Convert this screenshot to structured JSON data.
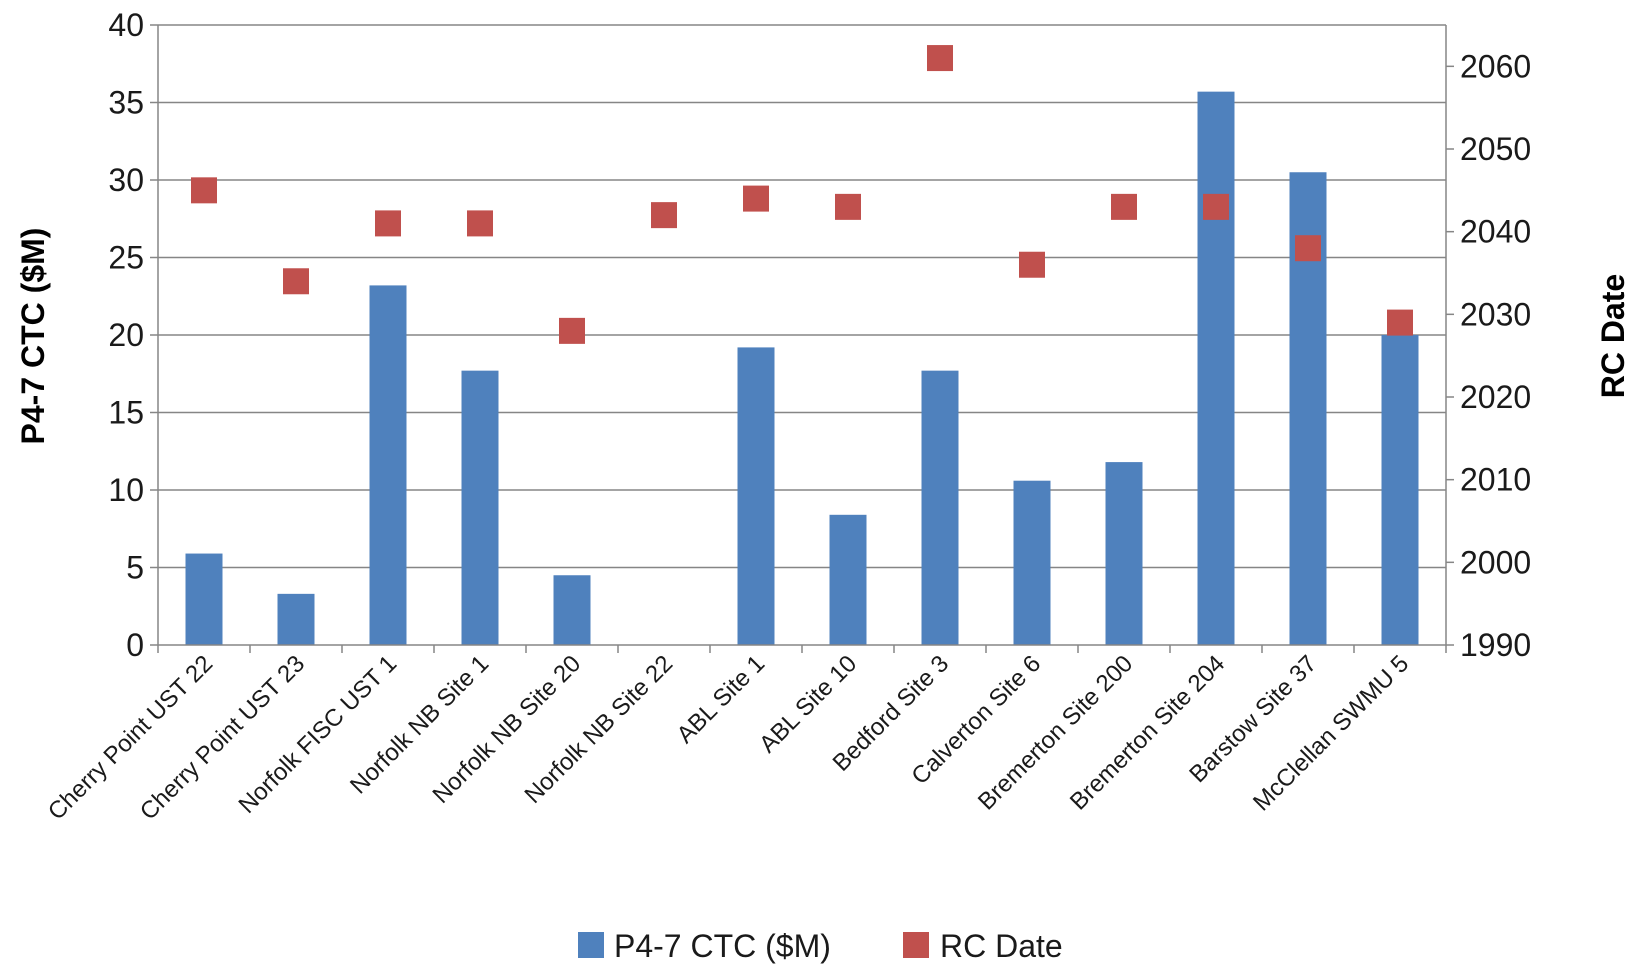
{
  "chart_data": {
    "type": "bar",
    "categories": [
      "Cherry Point UST 22",
      "Cherry Point UST 23",
      "Norfolk FISC UST 1",
      "Norfolk NB Site 1",
      "Norfolk NB Site 20",
      "Norfolk NB Site 22",
      "ABL Site 1",
      "ABL Site 10",
      "Bedford Site 3",
      "Calverton Site 6",
      "Bremerton Site 200",
      "Bremerton Site 204",
      "Barstow Site 37",
      "McClellan SWMU 5"
    ],
    "series": [
      {
        "name": "P4-7 CTC ($M)",
        "kind": "bar",
        "axis": "left",
        "color": "#4F81BD",
        "values": [
          5.9,
          3.3,
          23.2,
          17.7,
          4.5,
          0,
          19.2,
          8.4,
          17.7,
          10.6,
          11.8,
          35.7,
          30.5,
          20.0
        ]
      },
      {
        "name": "RC Date",
        "kind": "scatter",
        "axis": "right",
        "color": "#C0504D",
        "values": [
          2045,
          2034,
          2041,
          2041,
          2028,
          2042,
          2044,
          2043,
          2061,
          2036,
          2043,
          2043,
          2038,
          2029
        ]
      }
    ],
    "ylabel": "P4-7 CTC ($M)",
    "ylabel_right": "RC Date",
    "ylim": [
      0,
      40
    ],
    "yticks": [
      "0",
      "5",
      "10",
      "15",
      "20",
      "25",
      "30",
      "35",
      "40"
    ],
    "ylim_right": [
      1990,
      2065
    ],
    "yticks_right": [
      "1990",
      "2000",
      "2010",
      "2020",
      "2030",
      "2040",
      "2050",
      "2060"
    ],
    "grid": true,
    "legend_position": "bottom"
  }
}
